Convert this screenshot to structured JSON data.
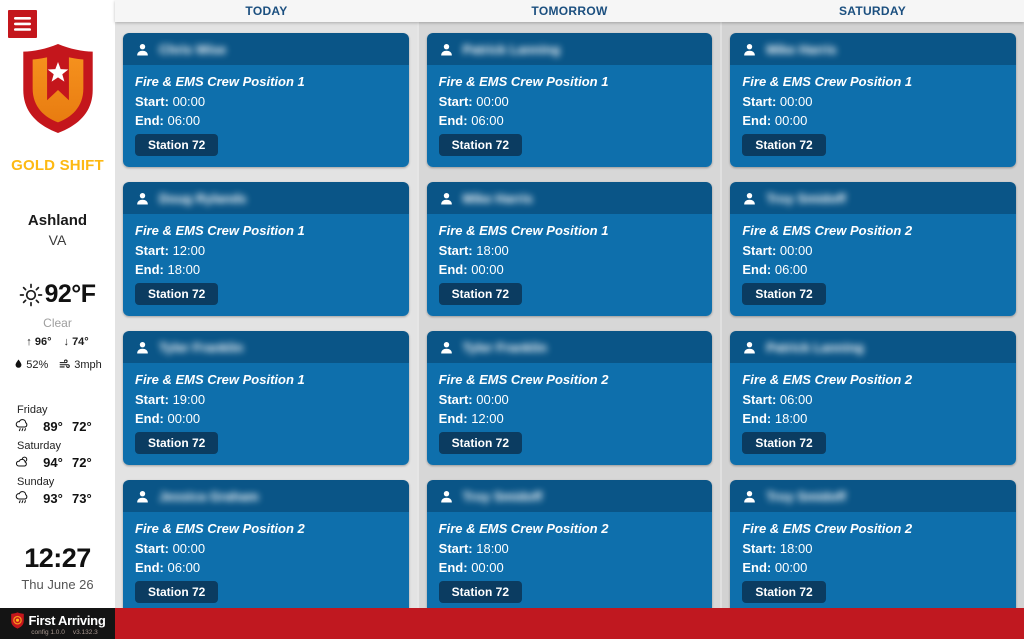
{
  "colors": {
    "brand_red": "#C4161C",
    "footer_red": "#C01820",
    "card_header_blue": "#0A5587",
    "card_body_blue": "#0E6FAC",
    "station_badge_navy": "#0B3C61",
    "tab_text_blue": "#1B4F7F",
    "shift_gold": "#FDB913"
  },
  "sidebar": {
    "shift_label": "GOLD SHIFT",
    "location": {
      "city": "Ashland",
      "state": "VA"
    },
    "weather": {
      "condition_icon": "sun-icon",
      "current_temp": "92°F",
      "condition": "Clear",
      "up_arrow": "↑",
      "high": "96°",
      "down_arrow": "↓",
      "low": "74°",
      "humidity_icon": "droplet-icon",
      "humidity": "52%",
      "wind_icon": "wind-icon",
      "wind": "3mph"
    },
    "forecast": [
      {
        "day": "Friday",
        "icon": "rain-icon",
        "high": "89°",
        "low": "72°"
      },
      {
        "day": "Saturday",
        "icon": "partly-cloudy-icon",
        "high": "94°",
        "low": "72°"
      },
      {
        "day": "Sunday",
        "icon": "rain-icon",
        "high": "93°",
        "low": "73°"
      }
    ],
    "clock": {
      "time": "12:27",
      "date": "Thu June 26"
    }
  },
  "board": {
    "names_redacted": true,
    "card_labels": {
      "start": "Start:",
      "end": "End:"
    },
    "columns": [
      {
        "label": "TODAY",
        "cards": [
          {
            "name": "Chris Wise",
            "position": "Fire & EMS Crew Position 1",
            "start": "00:00",
            "end": "06:00",
            "station": "Station 72"
          },
          {
            "name": "Doug Rylands",
            "position": "Fire & EMS Crew Position 1",
            "start": "12:00",
            "end": "18:00",
            "station": "Station 72"
          },
          {
            "name": "Tyler Franklin",
            "position": "Fire & EMS Crew Position 1",
            "start": "19:00",
            "end": "00:00",
            "station": "Station 72"
          },
          {
            "name": "Jessica Graham",
            "position": "Fire & EMS Crew Position 2",
            "start": "00:00",
            "end": "06:00",
            "station": "Station 72"
          }
        ]
      },
      {
        "label": "TOMORROW",
        "cards": [
          {
            "name": "Patrick Lanning",
            "position": "Fire & EMS Crew Position 1",
            "start": "00:00",
            "end": "06:00",
            "station": "Station 72"
          },
          {
            "name": "Mike Harris",
            "position": "Fire & EMS Crew Position 1",
            "start": "18:00",
            "end": "00:00",
            "station": "Station 72"
          },
          {
            "name": "Tyler Franklin",
            "position": "Fire & EMS Crew Position 2",
            "start": "00:00",
            "end": "12:00",
            "station": "Station 72"
          },
          {
            "name": "Troy Smidoff",
            "position": "Fire & EMS Crew Position 2",
            "start": "18:00",
            "end": "00:00",
            "station": "Station 72"
          }
        ]
      },
      {
        "label": "SATURDAY",
        "cards": [
          {
            "name": "Mike Harris",
            "position": "Fire & EMS Crew Position 1",
            "start": "00:00",
            "end": "00:00",
            "station": "Station 72"
          },
          {
            "name": "Troy Smidoff",
            "position": "Fire & EMS Crew Position 2",
            "start": "00:00",
            "end": "06:00",
            "station": "Station 72"
          },
          {
            "name": "Patrick Lanning",
            "position": "Fire & EMS Crew Position 2",
            "start": "06:00",
            "end": "18:00",
            "station": "Station 72"
          },
          {
            "name": "Troy Smidoff",
            "position": "Fire & EMS Crew Position 2",
            "start": "18:00",
            "end": "00:00",
            "station": "Station 72"
          }
        ]
      }
    ]
  },
  "footer": {
    "brand": "First Arriving",
    "config_version": "config 1.0.0",
    "app_version": "v3.132.3"
  }
}
